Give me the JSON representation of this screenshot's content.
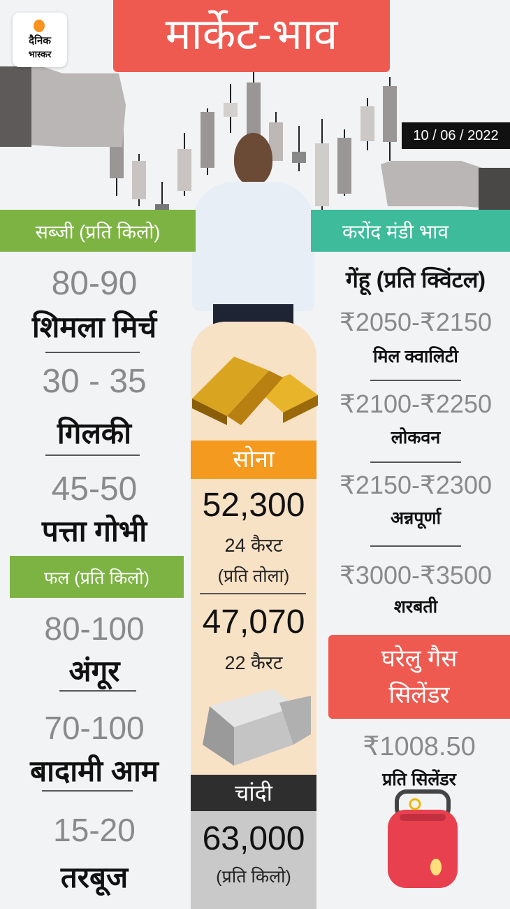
{
  "logo": {
    "line1": "दैनिक",
    "line2": "भास्कर"
  },
  "title": "मार्केट-भाव",
  "date": "10 / 06 / 2022",
  "vegetables": {
    "header": "सब्जी (प्रति किलो)",
    "items": [
      {
        "price": "80-90",
        "name": "शिमला मिर्च"
      },
      {
        "price": "30 - 35",
        "name": "गिलकी"
      },
      {
        "price": "45-50",
        "name": "पत्ता गोभी"
      }
    ]
  },
  "fruits": {
    "header": "फल (प्रति किलो)",
    "items": [
      {
        "price": "80-100",
        "name": "अंगूर"
      },
      {
        "price": "70-100",
        "name": "बादामी आम"
      },
      {
        "price": "15-20",
        "name": "तरबूज"
      }
    ]
  },
  "gold": {
    "label": "सोना",
    "price24": "52,300",
    "karat24": "24 कैरट",
    "unit": "(प्रति तोला)",
    "price22": "47,070",
    "karat22": "22 कैरट"
  },
  "silver": {
    "label": "चांदी",
    "price": "63,000",
    "unit": "(प्रति किलो)"
  },
  "mandi": {
    "header": "करोंद मंडी भाव",
    "subheader": "गेंहू (प्रति क्विंटल)",
    "items": [
      {
        "price": "₹2050-₹2150",
        "name": "मिल क्वालिटी"
      },
      {
        "price": "₹2100-₹2250",
        "name": "लोकवन"
      },
      {
        "price": "₹2150-₹2300",
        "name": "अन्नपूर्णा"
      },
      {
        "price": "₹3000-₹3500",
        "name": "शरबती"
      }
    ]
  },
  "gas": {
    "line1": "घरेलु गैस",
    "line2": "सिलेंडर",
    "price": "₹1008.50",
    "unit": "प्रति सिलेंडर"
  },
  "colors": {
    "title_red": "#ef5a50",
    "veg_green": "#7cb342",
    "mandi_teal": "#3dbb9a",
    "gold_orange": "#f39a1f",
    "silver_dark": "#2e2e2e"
  }
}
